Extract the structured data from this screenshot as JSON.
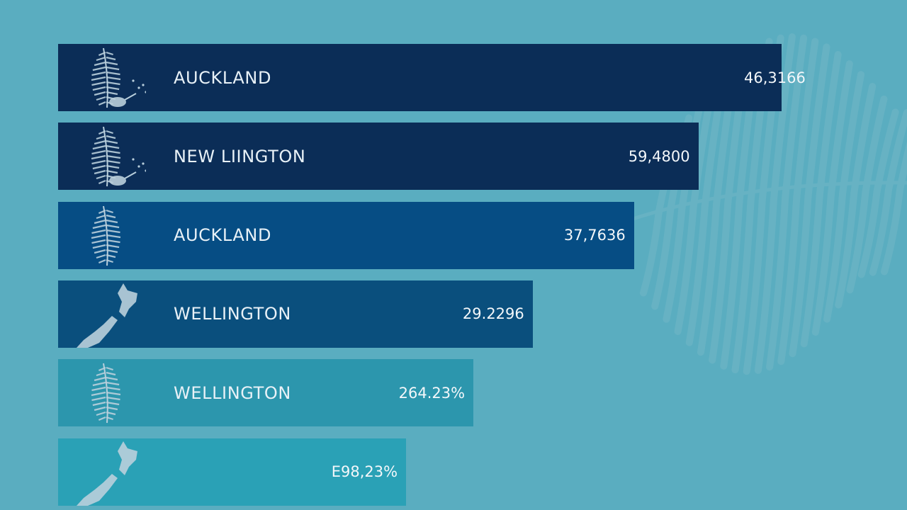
{
  "colors": {
    "background": "#5aadc0",
    "fern": "#7fbccb",
    "icon": "#b9cfdc"
  },
  "chart_data": {
    "type": "bar",
    "orientation": "horizontal",
    "categories": [
      "AUCKLAND",
      "NEW LIINGTON",
      "AUCKLAND",
      "WELLINGTON",
      "WELLINGTON",
      ""
    ],
    "value_labels": [
      "46,3166",
      "59,4800",
      "37,7636",
      "29.2296",
      "264.23%",
      "E98,23%"
    ],
    "values": [
      100,
      88.5,
      79.6,
      65.6,
      57.4,
      48.1
    ],
    "values_unit": "relative bar length, % of longest bar",
    "colors": [
      "#0b2d57",
      "#0b2d57",
      "#064d84",
      "#0a4f7d",
      "#2c96ad",
      "#2aa1b6"
    ],
    "icons": [
      "fern-kiwi-icon",
      "fern-kiwi-icon",
      "fern-icon",
      "nz-map-icon",
      "fern-icon",
      "nz-map-icon"
    ],
    "title": "",
    "xlabel": "",
    "ylabel": "",
    "grid": false,
    "legend": "none"
  }
}
